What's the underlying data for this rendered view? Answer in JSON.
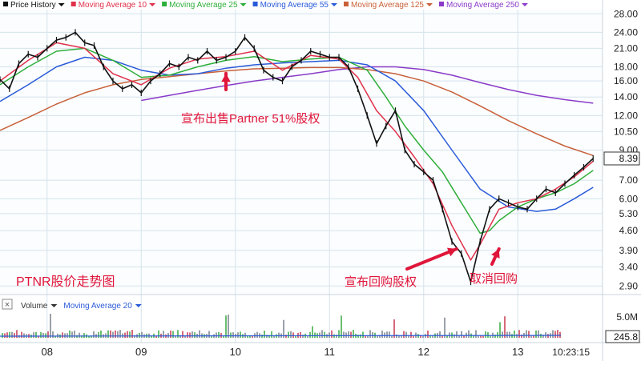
{
  "colors": {
    "price": "#111111",
    "ma10": "#e0304a",
    "ma25": "#2fae3a",
    "ma55": "#2a5ad8",
    "ma125": "#c8603a",
    "ma250": "#8a3ac8",
    "volume": "#9aa0a8",
    "annotation": "#e0153a",
    "grid": "#d6e3ec",
    "axis_text": "#222222"
  },
  "volume_panel": {
    "icon": "close-x-icon",
    "legend": [
      {
        "label": "Volume",
        "color": "#333333"
      },
      {
        "label": "Moving Average 20",
        "color": "#2a5ad8"
      }
    ],
    "axis_labels": [
      "5.0M"
    ],
    "value_box": "245.8"
  },
  "chart_data": {
    "type": "line",
    "scale": "log",
    "legend": [
      {
        "label": "Price History",
        "color": "#111111"
      },
      {
        "label": "Moving Average 10",
        "color": "#e0304a"
      },
      {
        "label": "Moving Average 25",
        "color": "#2fae3a"
      },
      {
        "label": "Moving Average 55",
        "color": "#2a5ad8"
      },
      {
        "label": "Moving Average 125",
        "color": "#c8603a"
      },
      {
        "label": "Moving Average 250",
        "color": "#8a3ac8"
      }
    ],
    "y_ticks": [
      "28.00",
      "24.00",
      "21.00",
      "18.00",
      "16.00",
      "14.00",
      "12.00",
      "10.50",
      "9.00",
      "7.00",
      "6.00",
      "5.30",
      "4.60",
      "3.90",
      "3.40",
      "2.90"
    ],
    "y_range": [
      2.7,
      29
    ],
    "x_ticks": [
      "08",
      "09",
      "10",
      "11",
      "12",
      "13"
    ],
    "x_range": [
      7.5,
      13.9
    ],
    "time_label": "10:23:15",
    "last_value": "8.39",
    "series": [
      {
        "name": "Price History",
        "color": "#111111",
        "x": [
          7.5,
          7.6,
          7.7,
          7.8,
          7.9,
          8.0,
          8.1,
          8.2,
          8.3,
          8.4,
          8.5,
          8.6,
          8.7,
          8.8,
          8.9,
          9.0,
          9.1,
          9.2,
          9.3,
          9.4,
          9.5,
          9.6,
          9.7,
          9.8,
          9.9,
          10.0,
          10.1,
          10.2,
          10.3,
          10.4,
          10.5,
          10.6,
          10.7,
          10.8,
          10.9,
          11.0,
          11.1,
          11.2,
          11.3,
          11.4,
          11.5,
          11.6,
          11.7,
          11.8,
          11.9,
          12.0,
          12.1,
          12.2,
          12.3,
          12.4,
          12.5,
          12.6,
          12.7,
          12.8,
          12.9,
          13.0,
          13.1,
          13.2,
          13.3,
          13.4,
          13.5,
          13.6,
          13.7,
          13.8
        ],
        "y": [
          16.2,
          15.0,
          18.5,
          20.0,
          19.5,
          21.0,
          22.5,
          23.0,
          24.0,
          22.0,
          21.5,
          18.0,
          16.0,
          15.0,
          15.5,
          14.5,
          16.0,
          17.0,
          18.5,
          18.0,
          19.5,
          19.0,
          20.5,
          19.0,
          19.5,
          20.5,
          23.0,
          21.0,
          17.5,
          16.5,
          16.0,
          18.0,
          19.0,
          20.5,
          20.0,
          19.5,
          19.5,
          18.0,
          15.0,
          12.0,
          9.5,
          11.0,
          12.5,
          9.0,
          8.0,
          7.5,
          7.0,
          5.5,
          4.2,
          3.8,
          3.0,
          4.2,
          5.5,
          6.0,
          5.8,
          5.6,
          5.5,
          6.0,
          6.5,
          6.3,
          6.8,
          7.3,
          7.8,
          8.39
        ]
      },
      {
        "name": "Moving Average 10",
        "color": "#e0304a",
        "x": [
          7.5,
          7.8,
          8.1,
          8.4,
          8.7,
          9.0,
          9.3,
          9.6,
          9.9,
          10.2,
          10.5,
          10.8,
          11.1,
          11.3,
          11.5,
          11.7,
          11.9,
          12.1,
          12.3,
          12.5,
          12.6,
          12.8,
          13.0,
          13.2,
          13.4,
          13.6,
          13.8
        ],
        "y": [
          16.0,
          19.0,
          22.0,
          21.0,
          17.0,
          15.5,
          17.8,
          19.2,
          19.6,
          20.5,
          17.5,
          19.8,
          19.2,
          16.5,
          12.5,
          10.5,
          8.5,
          6.8,
          4.8,
          3.6,
          4.1,
          5.5,
          5.8,
          6.0,
          6.5,
          7.2,
          8.2
        ]
      },
      {
        "name": "Moving Average 25",
        "color": "#2fae3a",
        "x": [
          7.5,
          7.8,
          8.1,
          8.4,
          8.7,
          9.0,
          9.3,
          9.6,
          9.9,
          10.2,
          10.5,
          10.8,
          11.1,
          11.4,
          11.6,
          11.8,
          12.0,
          12.2,
          12.4,
          12.6,
          12.7,
          12.8,
          13.0,
          13.2,
          13.4,
          13.6,
          13.8
        ],
        "y": [
          15.5,
          18.0,
          20.5,
          21.0,
          19.0,
          16.5,
          16.8,
          18.0,
          19.0,
          19.6,
          18.8,
          19.2,
          19.5,
          17.5,
          14.0,
          11.0,
          9.0,
          7.5,
          5.8,
          4.5,
          4.6,
          5.0,
          5.6,
          6.0,
          6.3,
          6.8,
          7.6
        ]
      },
      {
        "name": "Moving Average 55",
        "color": "#2a5ad8",
        "x": [
          7.5,
          7.8,
          8.1,
          8.4,
          8.7,
          9.0,
          9.3,
          9.6,
          9.9,
          10.2,
          10.5,
          10.8,
          11.1,
          11.4,
          11.7,
          12.0,
          12.3,
          12.6,
          12.9,
          13.2,
          13.4,
          13.6,
          13.8
        ],
        "y": [
          13.5,
          15.5,
          18.0,
          19.5,
          19.0,
          17.5,
          16.8,
          17.0,
          17.8,
          18.3,
          18.6,
          18.8,
          19.0,
          18.3,
          16.0,
          12.5,
          9.0,
          6.5,
          5.6,
          5.4,
          5.5,
          6.0,
          6.6
        ]
      },
      {
        "name": "Moving Average 125",
        "color": "#c8603a",
        "x": [
          7.5,
          7.8,
          8.1,
          8.4,
          8.7,
          9.0,
          9.3,
          9.6,
          9.9,
          10.2,
          10.5,
          10.8,
          11.1,
          11.4,
          11.7,
          12.0,
          12.3,
          12.6,
          12.9,
          13.2,
          13.5,
          13.8
        ],
        "y": [
          10.6,
          11.8,
          13.2,
          14.5,
          15.5,
          16.2,
          16.6,
          17.0,
          17.4,
          17.7,
          17.8,
          17.9,
          17.9,
          17.6,
          17.0,
          16.0,
          14.6,
          13.0,
          11.5,
          10.3,
          9.3,
          8.6
        ]
      },
      {
        "name": "Moving Average 250",
        "color": "#8a3ac8",
        "x": [
          9.0,
          9.3,
          9.6,
          9.9,
          10.2,
          10.5,
          10.8,
          11.1,
          11.4,
          11.7,
          12.0,
          12.3,
          12.6,
          12.9,
          13.2,
          13.5,
          13.8
        ],
        "y": [
          13.6,
          14.2,
          14.8,
          15.4,
          16.0,
          16.5,
          17.0,
          17.6,
          18.0,
          18.0,
          17.6,
          16.8,
          15.8,
          14.9,
          14.2,
          13.7,
          13.3
        ]
      }
    ],
    "annotations": [
      {
        "text": "宣布出售Partner 51%股权",
        "arrow_to": {
          "x": 9.9,
          "y": 17.5
        }
      },
      {
        "text": "宣布回购股权",
        "arrow_to": {
          "x": 12.35,
          "y": 3.95
        }
      },
      {
        "text": "取消回购",
        "arrow_to": {
          "x": 12.8,
          "y": 3.95
        }
      },
      {
        "text": "PTNR股价走势图"
      }
    ]
  }
}
